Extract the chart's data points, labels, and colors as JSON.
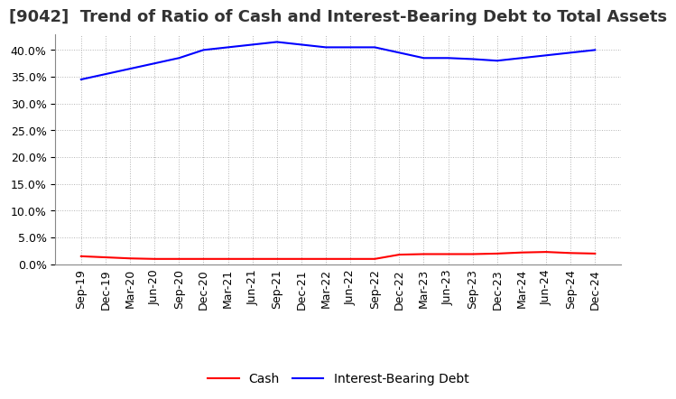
{
  "title": "[9042]  Trend of Ratio of Cash and Interest-Bearing Debt to Total Assets",
  "x_labels": [
    "Sep-19",
    "Dec-19",
    "Mar-20",
    "Jun-20",
    "Sep-20",
    "Dec-20",
    "Mar-21",
    "Jun-21",
    "Sep-21",
    "Dec-21",
    "Mar-22",
    "Jun-22",
    "Sep-22",
    "Dec-22",
    "Mar-23",
    "Jun-23",
    "Sep-23",
    "Dec-23",
    "Mar-24",
    "Jun-24",
    "Sep-24",
    "Dec-24"
  ],
  "cash": [
    1.5,
    1.3,
    1.1,
    1.0,
    1.0,
    1.0,
    1.0,
    1.0,
    1.0,
    1.0,
    1.0,
    1.0,
    1.0,
    1.8,
    1.9,
    1.9,
    1.9,
    2.0,
    2.2,
    2.3,
    2.1,
    2.0
  ],
  "interest_bearing_debt": [
    34.5,
    35.5,
    36.5,
    37.5,
    38.5,
    40.0,
    40.5,
    41.0,
    41.5,
    41.0,
    40.5,
    40.5,
    40.5,
    39.5,
    38.5,
    38.5,
    38.3,
    38.0,
    38.5,
    39.0,
    39.5,
    40.0
  ],
  "cash_color": "#FF0000",
  "debt_color": "#0000FF",
  "bg_color": "#FFFFFF",
  "plot_bg_color": "#FFFFFF",
  "grid_color": "#AAAAAA",
  "ylim": [
    0,
    43
  ],
  "yticks": [
    0.0,
    5.0,
    10.0,
    15.0,
    20.0,
    25.0,
    30.0,
    35.0,
    40.0
  ],
  "legend_cash": "Cash",
  "legend_debt": "Interest-Bearing Debt",
  "title_fontsize": 13,
  "tick_fontsize": 9,
  "legend_fontsize": 10
}
